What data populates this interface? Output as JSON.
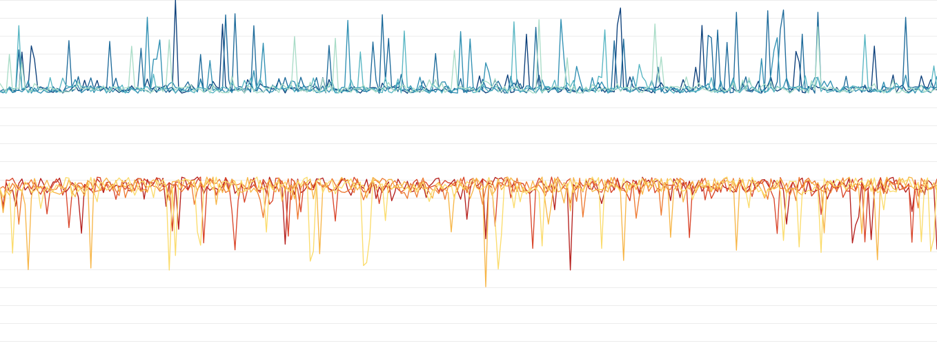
{
  "chart_data": {
    "type": "line",
    "title": "",
    "xlabel": "",
    "ylabel": "",
    "grid": true,
    "legend": "none",
    "x_range": [
      0,
      299
    ],
    "y_range": [
      -10,
      10
    ],
    "gridline_values": [
      10,
      9,
      8,
      7,
      6,
      5,
      4,
      3,
      2,
      1,
      0,
      -1,
      -2,
      -3,
      -4,
      -5,
      -6,
      -7,
      -8,
      -9,
      -10
    ],
    "groups": [
      {
        "baseline": 5,
        "direction": "up",
        "points": 300,
        "series": [
          {
            "color": "#0b3f7a",
            "seed": 11,
            "spike_rate": 0.05,
            "max_spike": 4.6
          },
          {
            "color": "#1d6a9a",
            "seed": 23,
            "spike_rate": 0.06,
            "max_spike": 4.1
          },
          {
            "color": "#2f8fb2",
            "seed": 37,
            "spike_rate": 0.06,
            "max_spike": 3.6
          },
          {
            "color": "#58b6c3",
            "seed": 41,
            "spike_rate": 0.05,
            "max_spike": 3.4
          },
          {
            "color": "#a9dcc7",
            "seed": 53,
            "spike_rate": 0.05,
            "max_spike": 3.2
          }
        ]
      },
      {
        "baseline": -0.3,
        "direction": "down",
        "points": 300,
        "series": [
          {
            "color": "#b51f1c",
            "seed": 61,
            "spike_rate": 0.06,
            "max_spike": 4.1
          },
          {
            "color": "#d9452a",
            "seed": 73,
            "spike_rate": 0.06,
            "max_spike": 3.0
          },
          {
            "color": "#ee7a32",
            "seed": 89,
            "spike_rate": 0.05,
            "max_spike": 2.6
          },
          {
            "color": "#f7b648",
            "seed": 97,
            "spike_rate": 0.07,
            "max_spike": 4.9
          },
          {
            "color": "#fbdc6c",
            "seed": 101,
            "spike_rate": 0.08,
            "max_spike": 4.7
          }
        ]
      }
    ]
  }
}
